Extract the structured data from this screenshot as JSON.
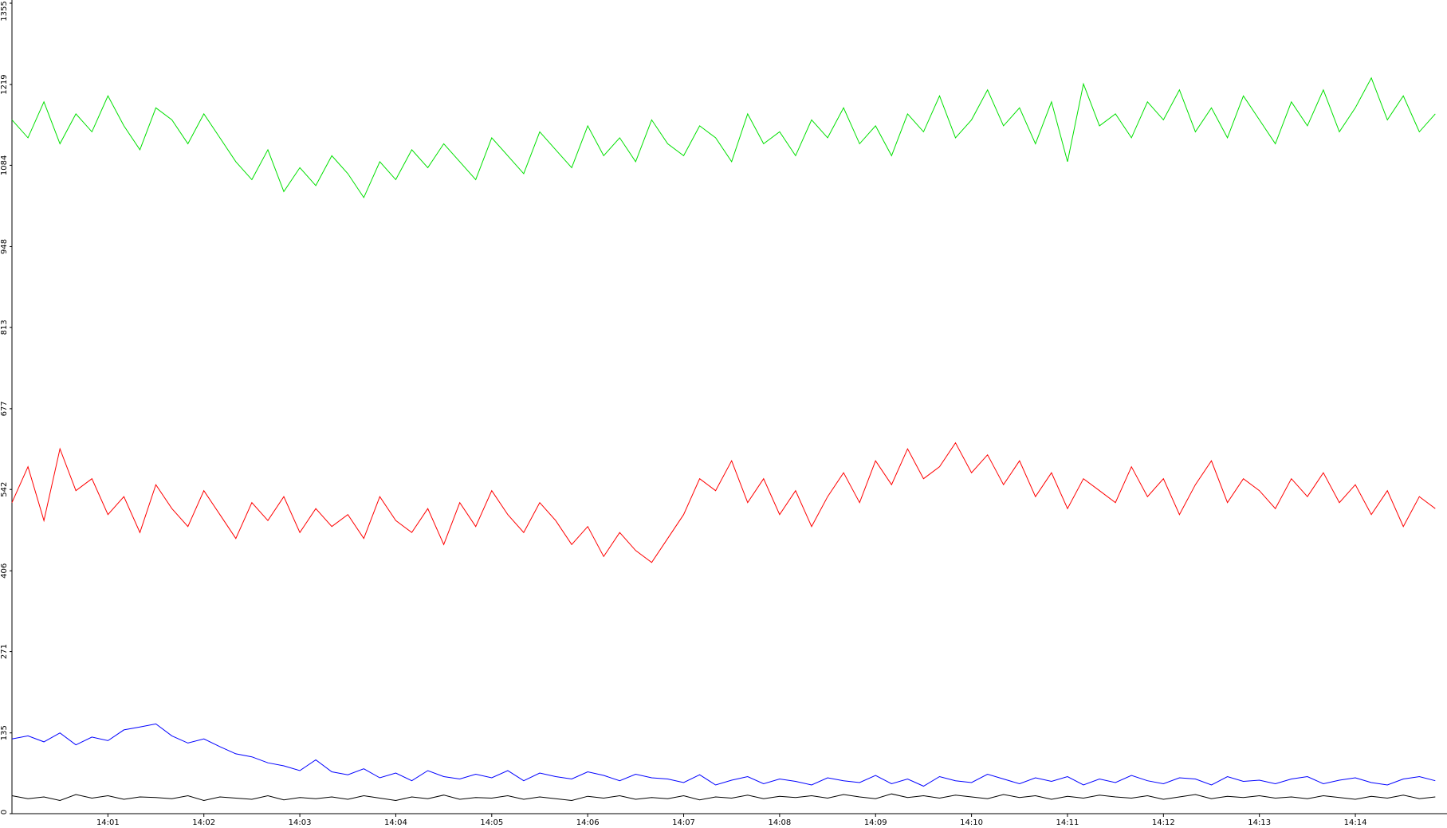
{
  "chart_data": {
    "type": "line",
    "categories": [
      null,
      null,
      null,
      null,
      null,
      null,
      "14:01",
      null,
      null,
      null,
      null,
      null,
      "14:02",
      null,
      null,
      null,
      null,
      null,
      "14:03",
      null,
      null,
      null,
      null,
      null,
      "14:04",
      null,
      null,
      null,
      null,
      null,
      "14:05",
      null,
      null,
      null,
      null,
      null,
      "14:06",
      null,
      null,
      null,
      null,
      null,
      "14:07",
      null,
      null,
      null,
      null,
      null,
      "14:08",
      null,
      null,
      null,
      null,
      null,
      "14:09",
      null,
      null,
      null,
      null,
      null,
      "14:10",
      null,
      null,
      null,
      null,
      null,
      "14:11",
      null,
      null,
      null,
      null,
      null,
      "14:12",
      null,
      null,
      null,
      null,
      null,
      "14:13",
      null,
      null,
      null,
      null,
      null,
      "14:14",
      null,
      null,
      null,
      null,
      null
    ],
    "series": [
      {
        "color": "#00e000",
        "values": [
          1160,
          1130,
          1190,
          1120,
          1170,
          1140,
          1200,
          1150,
          1110,
          1180,
          1160,
          1120,
          1170,
          1130,
          1090,
          1060,
          1110,
          1040,
          1080,
          1050,
          1100,
          1070,
          1030,
          1090,
          1060,
          1110,
          1080,
          1120,
          1090,
          1060,
          1130,
          1100,
          1070,
          1140,
          1110,
          1080,
          1150,
          1100,
          1130,
          1090,
          1160,
          1120,
          1100,
          1150,
          1130,
          1090,
          1170,
          1120,
          1140,
          1100,
          1160,
          1130,
          1180,
          1120,
          1150,
          1100,
          1170,
          1140,
          1200,
          1130,
          1160,
          1210,
          1150,
          1180,
          1120,
          1190,
          1090,
          1220,
          1150,
          1170,
          1130,
          1190,
          1160,
          1210,
          1140,
          1180,
          1130,
          1200,
          1160,
          1120,
          1190,
          1150,
          1210,
          1140,
          1180,
          1230,
          1160,
          1200,
          1140,
          1170
        ]
      },
      {
        "color": "#ff0000",
        "values": [
          520,
          580,
          490,
          610,
          540,
          560,
          500,
          530,
          470,
          550,
          510,
          480,
          540,
          500,
          460,
          520,
          490,
          530,
          470,
          510,
          480,
          500,
          460,
          530,
          490,
          470,
          510,
          450,
          520,
          480,
          540,
          500,
          470,
          520,
          490,
          450,
          480,
          430,
          470,
          440,
          420,
          460,
          500,
          560,
          540,
          590,
          520,
          560,
          500,
          540,
          480,
          530,
          570,
          520,
          590,
          550,
          610,
          560,
          580,
          620,
          570,
          600,
          550,
          590,
          530,
          570,
          510,
          560,
          540,
          520,
          580,
          530,
          560,
          500,
          550,
          590,
          520,
          560,
          540,
          510,
          560,
          530,
          570,
          520,
          550,
          500,
          540,
          480,
          530,
          510
        ]
      },
      {
        "color": "#0000ff",
        "values": [
          125,
          130,
          120,
          135,
          115,
          128,
          122,
          140,
          145,
          150,
          130,
          118,
          125,
          112,
          100,
          95,
          85,
          80,
          72,
          90,
          70,
          65,
          75,
          60,
          68,
          55,
          72,
          62,
          58,
          66,
          60,
          72,
          55,
          68,
          62,
          58,
          70,
          64,
          55,
          66,
          60,
          58,
          52,
          65,
          48,
          56,
          62,
          50,
          58,
          54,
          48,
          60,
          55,
          52,
          64,
          50,
          58,
          46,
          62,
          55,
          52,
          66,
          58,
          50,
          60,
          54,
          62,
          48,
          58,
          52,
          64,
          55,
          50,
          60,
          58,
          48,
          62,
          54,
          56,
          50,
          58,
          62,
          50,
          56,
          60,
          52,
          48,
          58,
          62,
          55
        ]
      },
      {
        "color": "#000000",
        "values": [
          30,
          25,
          28,
          22,
          32,
          26,
          30,
          24,
          28,
          27,
          25,
          30,
          22,
          28,
          26,
          24,
          30,
          23,
          27,
          25,
          28,
          24,
          30,
          26,
          22,
          28,
          25,
          31,
          24,
          27,
          26,
          30,
          24,
          28,
          25,
          22,
          29,
          26,
          30,
          24,
          27,
          25,
          30,
          23,
          28,
          26,
          31,
          25,
          29,
          27,
          30,
          26,
          32,
          28,
          25,
          33,
          27,
          30,
          26,
          31,
          28,
          25,
          32,
          27,
          30,
          24,
          29,
          26,
          31,
          28,
          26,
          30,
          24,
          28,
          32,
          25,
          29,
          27,
          30,
          26,
          28,
          25,
          30,
          27,
          24,
          29,
          26,
          31,
          25,
          28
        ]
      }
    ],
    "ylim": [
      0,
      1355
    ],
    "yticks": [
      0,
      135,
      271,
      406,
      542,
      677,
      813,
      948,
      1084,
      1219,
      1355
    ]
  }
}
